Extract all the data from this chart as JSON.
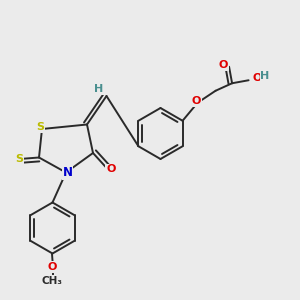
{
  "bg_color": "#ebebeb",
  "bond_color": "#2a2a2a",
  "atom_colors": {
    "O": "#e00000",
    "N": "#0000cc",
    "S": "#bbbb00",
    "H": "#4a8f8f",
    "C": "#2a2a2a"
  },
  "lw": 1.4,
  "doff": 0.012
}
